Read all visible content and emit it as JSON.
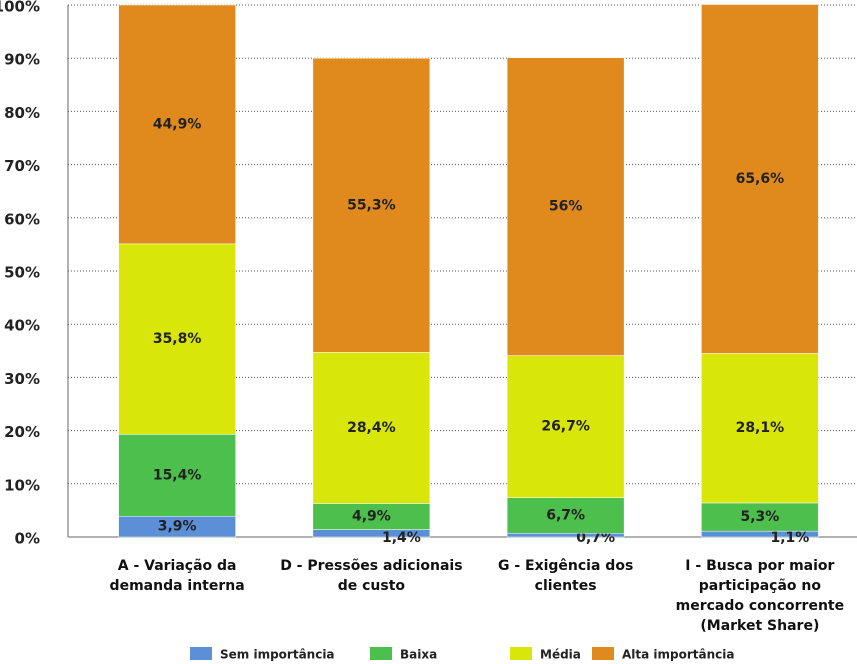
{
  "chart_data": {
    "type": "stacked-bar",
    "categories": [
      "A - Variação da demanda interna",
      "D - Pressões adicionais de custo",
      "G - Exigência dos clientes",
      "I - Busca por maior participação no mercado concorrente (Market Share)"
    ],
    "series": [
      {
        "name": "Sem importância",
        "color": "#5b8fd6",
        "values": [
          3.9,
          1.4,
          0.7,
          1.1
        ],
        "value_labels": [
          "3,9%",
          "1,4%",
          "0,7%",
          "1,1%"
        ]
      },
      {
        "name": "Baixa",
        "color": "#4cbf4c",
        "values": [
          15.4,
          4.9,
          6.7,
          5.3
        ],
        "value_labels": [
          "15,4%",
          "4,9%",
          "6,7%",
          "5,3%"
        ]
      },
      {
        "name": "Média",
        "color": "#d9e60a",
        "values": [
          35.8,
          28.4,
          26.7,
          28.1
        ],
        "value_labels": [
          "35,8%",
          "28,4%",
          "26,7%",
          "28,1%"
        ]
      },
      {
        "name": "Alta importância",
        "color": "#e08a1e",
        "values": [
          44.9,
          55.3,
          56,
          65.6
        ],
        "value_labels": [
          "44,9%",
          "55,3%",
          "56%",
          "65,6%"
        ]
      }
    ],
    "ylim": [
      0,
      100
    ],
    "yticks": [
      {
        "value": 0,
        "label": "0%"
      },
      {
        "value": 10,
        "label": "10%"
      },
      {
        "value": 20,
        "label": "20%"
      },
      {
        "value": 30,
        "label": "30%"
      },
      {
        "value": 40,
        "label": "40%"
      },
      {
        "value": 50,
        "label": "50%"
      },
      {
        "value": 60,
        "label": "60%"
      },
      {
        "value": 70,
        "label": "70%"
      },
      {
        "value": 80,
        "label": "80%"
      },
      {
        "value": 90,
        "label": "90%"
      },
      {
        "value": 100,
        "label": "100%"
      }
    ],
    "grid": true
  }
}
